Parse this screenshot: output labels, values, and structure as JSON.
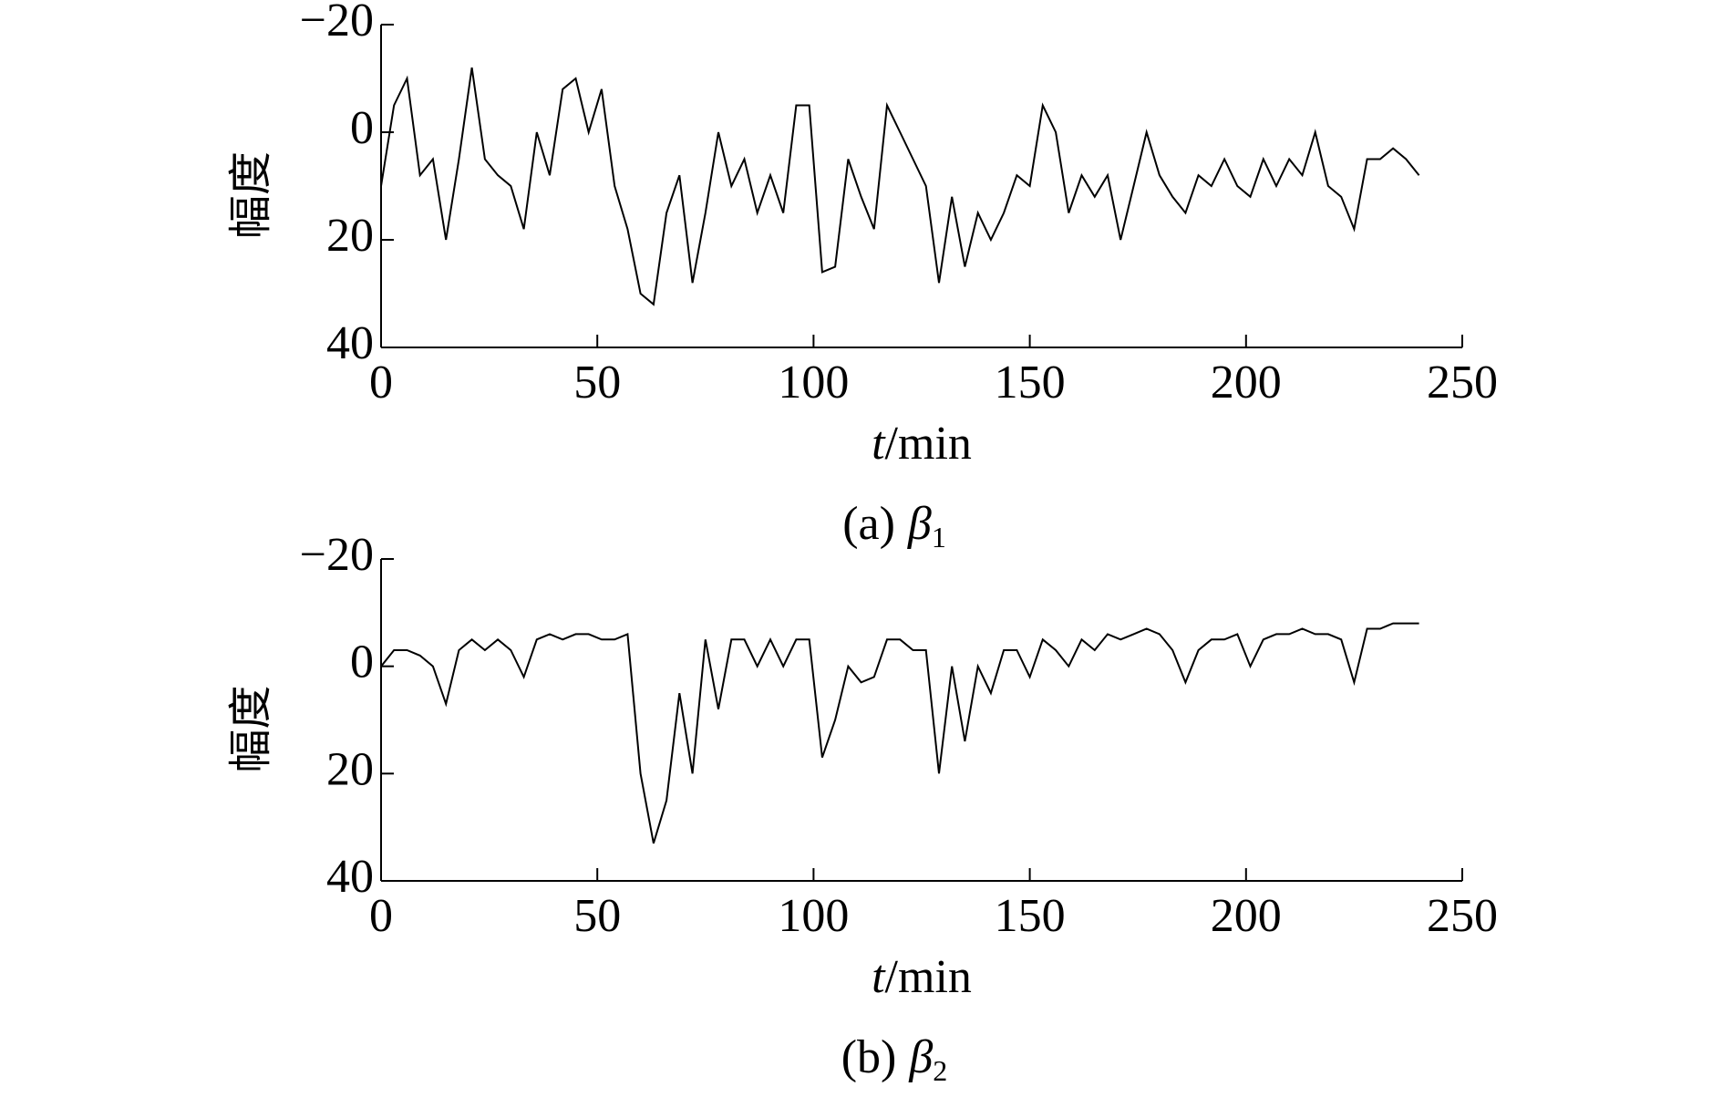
{
  "chart_data": [
    {
      "type": "line",
      "ylabel": "幅度",
      "xlabel_var": "t",
      "xlabel_unit": "/min",
      "caption_label": "(a)",
      "caption_symbol": "β",
      "caption_subscript": "1",
      "xlim": [
        0,
        250
      ],
      "xticks": [
        0,
        50,
        100,
        150,
        200,
        250
      ],
      "ylim": [
        40,
        -20
      ],
      "yticks": [
        {
          "value": -20,
          "label": "−20"
        },
        0,
        20,
        40
      ],
      "x": [
        0,
        3,
        6,
        9,
        12,
        15,
        18,
        21,
        24,
        27,
        30,
        33,
        36,
        39,
        42,
        45,
        48,
        51,
        54,
        57,
        60,
        63,
        66,
        69,
        72,
        75,
        78,
        81,
        84,
        87,
        90,
        93,
        96,
        99,
        102,
        105,
        108,
        111,
        114,
        117,
        120,
        123,
        126,
        129,
        132,
        135,
        138,
        141,
        144,
        147,
        150,
        153,
        156,
        159,
        162,
        165,
        168,
        171,
        174,
        177,
        180,
        183,
        186,
        189,
        192,
        195,
        198,
        201,
        204,
        207,
        210,
        213,
        216,
        219,
        222,
        225,
        228,
        231,
        234,
        237,
        240
      ],
      "series": [
        {
          "color": "#000000",
          "values": [
            10,
            -5,
            -10,
            8,
            5,
            20,
            5,
            -12,
            5,
            8,
            10,
            18,
            0,
            8,
            -8,
            -10,
            0,
            -8,
            10,
            18,
            30,
            32,
            15,
            8,
            28,
            15,
            0,
            10,
            5,
            15,
            8,
            15,
            -5,
            -5,
            26,
            25,
            5,
            12,
            18,
            -5,
            0,
            5,
            10,
            28,
            12,
            25,
            15,
            20,
            15,
            8,
            10,
            -5,
            0,
            15,
            8,
            12,
            8,
            20,
            10,
            0,
            8,
            12,
            15,
            8,
            10,
            5,
            10,
            12,
            5,
            10,
            5,
            8,
            0,
            10,
            12,
            18,
            5,
            5,
            3,
            5,
            8
          ]
        }
      ]
    },
    {
      "type": "line",
      "ylabel": "幅度",
      "xlabel_var": "t",
      "xlabel_unit": "/min",
      "caption_label": "(b)",
      "caption_symbol": "β",
      "caption_subscript": "2",
      "xlim": [
        0,
        250
      ],
      "xticks": [
        0,
        50,
        100,
        150,
        200,
        250
      ],
      "ylim": [
        40,
        -20
      ],
      "yticks": [
        {
          "value": -20,
          "label": "−20"
        },
        0,
        20,
        40
      ],
      "x": [
        0,
        3,
        6,
        9,
        12,
        15,
        18,
        21,
        24,
        27,
        30,
        33,
        36,
        39,
        42,
        45,
        48,
        51,
        54,
        57,
        60,
        63,
        66,
        69,
        72,
        75,
        78,
        81,
        84,
        87,
        90,
        93,
        96,
        99,
        102,
        105,
        108,
        111,
        114,
        117,
        120,
        123,
        126,
        129,
        132,
        135,
        138,
        141,
        144,
        147,
        150,
        153,
        156,
        159,
        162,
        165,
        168,
        171,
        174,
        177,
        180,
        183,
        186,
        189,
        192,
        195,
        198,
        201,
        204,
        207,
        210,
        213,
        216,
        219,
        222,
        225,
        228,
        231,
        234,
        237,
        240
      ],
      "series": [
        {
          "color": "#000000",
          "values": [
            0,
            -3,
            -3,
            -2,
            0,
            7,
            -3,
            -5,
            -3,
            -5,
            -3,
            2,
            -5,
            -6,
            -5,
            -6,
            -6,
            -5,
            -5,
            -6,
            20,
            33,
            25,
            5,
            20,
            -5,
            8,
            -5,
            -5,
            0,
            -5,
            0,
            -5,
            -5,
            17,
            10,
            0,
            3,
            2,
            -5,
            -5,
            -3,
            -3,
            20,
            0,
            14,
            0,
            5,
            -3,
            -3,
            2,
            -5,
            -3,
            0,
            -5,
            -3,
            -6,
            -5,
            -6,
            -7,
            -6,
            -3,
            3,
            -3,
            -5,
            -5,
            -6,
            0,
            -5,
            -6,
            -6,
            -7,
            -6,
            -6,
            -5,
            3,
            -7,
            -7,
            -8,
            -8,
            -8
          ]
        }
      ]
    }
  ]
}
